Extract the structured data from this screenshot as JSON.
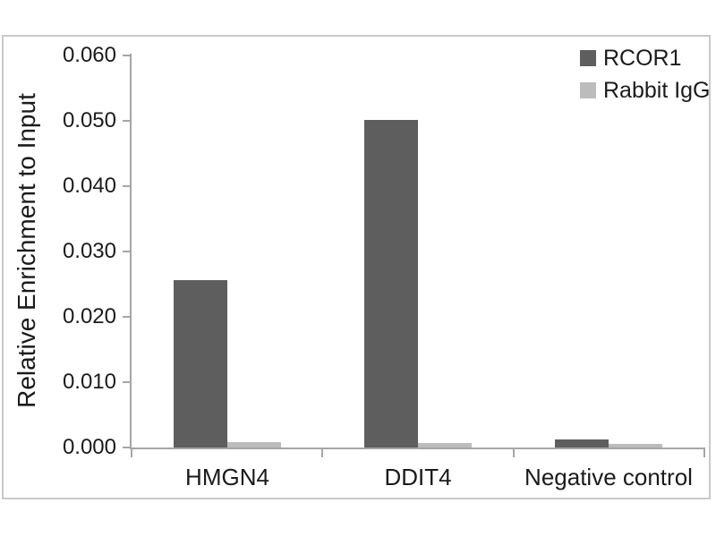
{
  "chart_data": {
    "type": "bar",
    "title": "",
    "ylabel": "Relative Enrichment to Input",
    "xlabel": "",
    "categories": [
      "HMGN4",
      "DDIT4",
      "Negative control"
    ],
    "series": [
      {
        "name": "RCOR1",
        "color": "#5e5e5e",
        "values": [
          0.0256,
          0.0502,
          0.0013
        ]
      },
      {
        "name": "Rabbit IgG",
        "color": "#bcbcbc",
        "values": [
          0.0008,
          0.0007,
          0.0005
        ]
      }
    ],
    "ylim": [
      0,
      0.06
    ],
    "ytick_step": 0.01,
    "ytick_labels": [
      "0.000",
      "0.010",
      "0.020",
      "0.030",
      "0.040",
      "0.050",
      "0.060"
    ],
    "grid": false,
    "legend_position": "top-right",
    "colors": {
      "axis": "#a6a6a6",
      "plot_border": "#c9c9c9",
      "text": "#1b1b1b",
      "background": "#ffffff"
    }
  }
}
